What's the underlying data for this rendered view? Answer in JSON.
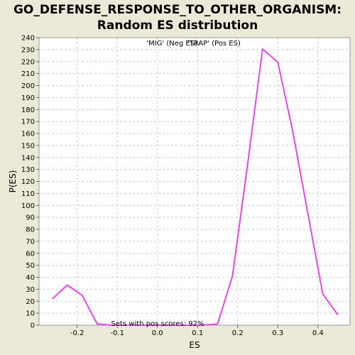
{
  "chart_data": {
    "type": "line",
    "title_line1": "GO_DEFENSE_RESPONSE_TO_OTHER_ORGANISM:",
    "title_line2": "Random ES distribution",
    "xlabel": "ES",
    "ylabel": "P(ES)",
    "xlim": [
      -0.295,
      0.48
    ],
    "ylim": [
      0,
      240
    ],
    "xticks": [
      -0.2,
      -0.1,
      0.0,
      0.1,
      0.2,
      0.3,
      0.4
    ],
    "xtick_labels": [
      "-0.2",
      "-0.1",
      "0.0",
      "0.1",
      "0.2",
      "0.3",
      "0.4"
    ],
    "yticks": [
      0,
      10,
      20,
      30,
      40,
      50,
      60,
      70,
      80,
      90,
      100,
      110,
      120,
      130,
      140,
      150,
      160,
      170,
      180,
      190,
      200,
      210,
      220,
      230,
      240
    ],
    "grid": true,
    "legend": {
      "neg_label": "'MIG' (Neg ES)",
      "pos_label": "'TRAP' (Pos ES)",
      "neg_color": "#3333cc",
      "pos_color": "#cc3333",
      "placement": "top-center"
    },
    "annotation": "Sets with pos scores: 92%",
    "series": [
      {
        "color": "#ee44ee",
        "x": [
          -0.262,
          -0.225,
          -0.188,
          -0.15,
          -0.112,
          -0.075,
          -0.037,
          0.0,
          0.037,
          0.075,
          0.112,
          0.15,
          0.187,
          0.225,
          0.262,
          0.3,
          0.337,
          0.375,
          0.412,
          0.45
        ],
        "y": [
          22,
          33.5,
          25,
          1,
          0,
          0,
          0,
          0,
          0,
          0,
          0,
          1,
          41,
          135,
          230.5,
          219.5,
          162,
          93,
          26,
          8.5
        ]
      }
    ],
    "colors": {
      "plot_bg": "#ffffff",
      "grid": "#cccccc",
      "frame": "#999999",
      "page_bg": "#ece9d8"
    }
  }
}
